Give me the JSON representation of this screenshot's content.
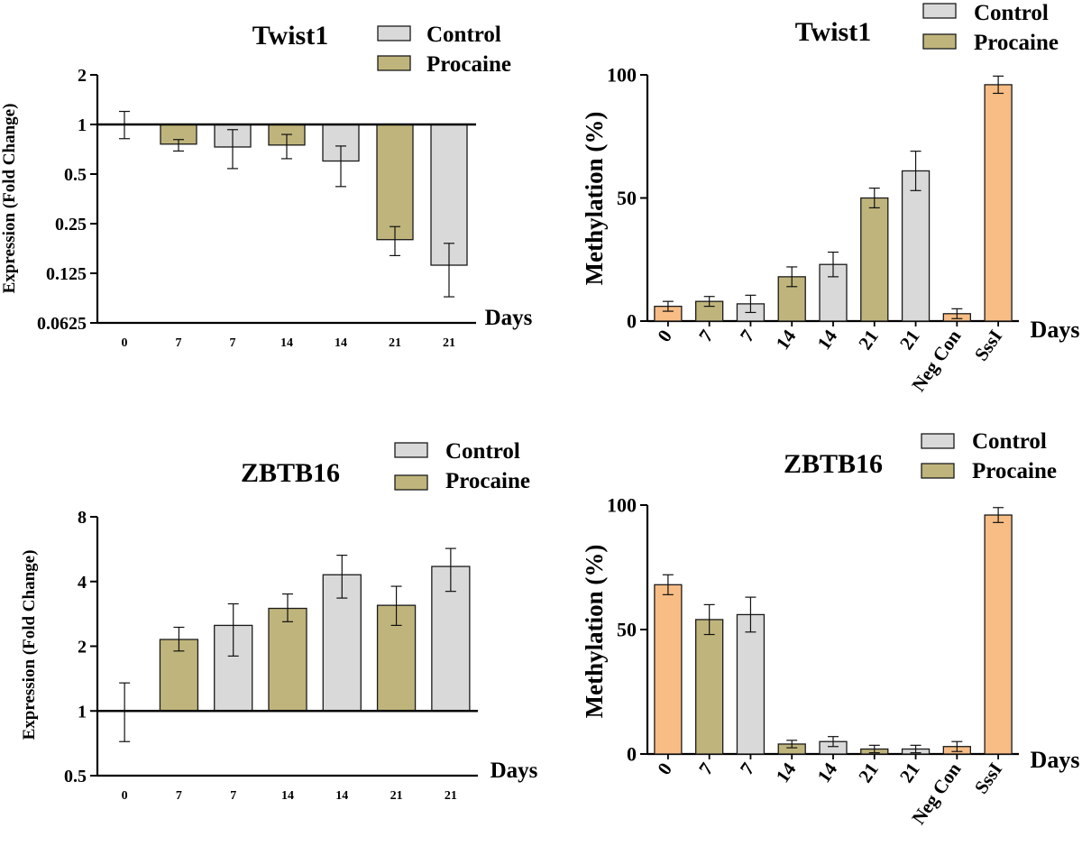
{
  "colors": {
    "control": "#d9d9d9",
    "procaine": "#bfb57c",
    "orange": "#f7bd85",
    "orange_dark": "#f2b37a",
    "stroke": "#1a1a1a"
  },
  "chart_data": [
    {
      "id": "twist1-expression",
      "type": "bar",
      "title": "Twist1",
      "xlabel": "Days",
      "ylabel": "Expression (Fold Change)",
      "yscale": "log2",
      "ylim": [
        0.0625,
        2
      ],
      "yticks": [
        "2",
        "1",
        "0.5",
        "0.25",
        "0.125",
        "0.0625"
      ],
      "ytick_values": [
        2,
        1,
        0.5,
        0.25,
        0.125,
        0.0625
      ],
      "baseline": 1,
      "categories": [
        "0",
        "7",
        "7",
        "14",
        "14",
        "21",
        "21"
      ],
      "values": [
        1.0,
        0.76,
        0.73,
        0.75,
        0.6,
        0.2,
        0.14
      ],
      "errors": [
        [
          0.82,
          1.2
        ],
        [
          0.69,
          0.81
        ],
        [
          0.54,
          0.93
        ],
        [
          0.62,
          0.87
        ],
        [
          0.42,
          0.74
        ],
        [
          0.16,
          0.24
        ],
        [
          0.09,
          0.19
        ]
      ],
      "group": [
        "none",
        "procaine",
        "control",
        "procaine",
        "control",
        "procaine",
        "control"
      ],
      "legend": [
        {
          "label": "Control",
          "key": "control"
        },
        {
          "label": "Procaine",
          "key": "procaine"
        }
      ],
      "legend_position": "top-right",
      "tick_style": "small"
    },
    {
      "id": "twist1-methylation",
      "type": "bar",
      "title": "Twist1",
      "xlabel": "Days",
      "ylabel": "Methylation (%)",
      "yscale": "linear",
      "ylim": [
        0,
        100
      ],
      "yticks": [
        "100",
        "50",
        "0"
      ],
      "ytick_values": [
        100,
        50,
        0
      ],
      "categories": [
        "0",
        "7",
        "7",
        "14",
        "14",
        "21",
        "21",
        "Neg Con",
        "SssI"
      ],
      "values": [
        6,
        8,
        7,
        18,
        23,
        50,
        61,
        3,
        96
      ],
      "errors": [
        2,
        2,
        3.5,
        4,
        5,
        4,
        8,
        2,
        3.5
      ],
      "group": [
        "orange",
        "procaine",
        "control",
        "procaine",
        "control",
        "procaine",
        "control",
        "orange",
        "orange"
      ],
      "legend": [
        {
          "label": "Control",
          "key": "control"
        },
        {
          "label": "Procaine",
          "key": "procaine"
        }
      ],
      "legend_position": "top-right",
      "tick_style": "rotated"
    },
    {
      "id": "zbtb16-expression",
      "type": "bar",
      "title": "ZBTB16",
      "xlabel": "Days",
      "ylabel": "Expression (Fold Change)",
      "yscale": "log2",
      "ylim": [
        0.5,
        8
      ],
      "yticks": [
        "8",
        "4",
        "2",
        "1",
        "0.5"
      ],
      "ytick_values": [
        8,
        4,
        2,
        1,
        0.5
      ],
      "baseline": 1,
      "categories": [
        "0",
        "7",
        "7",
        "14",
        "14",
        "21",
        "21"
      ],
      "values": [
        1.0,
        2.15,
        2.5,
        3.0,
        4.3,
        3.1,
        4.7
      ],
      "errors": [
        [
          0.72,
          1.35
        ],
        [
          1.9,
          2.45
        ],
        [
          1.8,
          3.15
        ],
        [
          2.6,
          3.5
        ],
        [
          3.35,
          5.3
        ],
        [
          2.5,
          3.8
        ],
        [
          3.6,
          5.7
        ]
      ],
      "group": [
        "none",
        "procaine",
        "control",
        "procaine",
        "control",
        "procaine",
        "control"
      ],
      "legend": [
        {
          "label": "Control",
          "key": "control"
        },
        {
          "label": "Procaine",
          "key": "procaine"
        }
      ],
      "legend_position": "top-right",
      "tick_style": "small"
    },
    {
      "id": "zbtb16-methylation",
      "type": "bar",
      "title": "ZBTB16",
      "xlabel": "Days",
      "ylabel": "Methylation (%)",
      "yscale": "linear",
      "ylim": [
        0,
        100
      ],
      "yticks": [
        "100",
        "50",
        "0"
      ],
      "ytick_values": [
        100,
        50,
        0
      ],
      "categories": [
        "0",
        "7",
        "7",
        "14",
        "14",
        "21",
        "21",
        "Neg Con",
        "SssI"
      ],
      "values": [
        68,
        54,
        56,
        4,
        5,
        2,
        2,
        3,
        96
      ],
      "errors": [
        4,
        6,
        7,
        1.5,
        2,
        1.5,
        1.5,
        2,
        3
      ],
      "group": [
        "orange",
        "procaine",
        "control",
        "procaine",
        "control",
        "procaine",
        "control",
        "orange",
        "orange"
      ],
      "legend": [
        {
          "label": "Control",
          "key": "control"
        },
        {
          "label": "Procaine",
          "key": "procaine"
        }
      ],
      "legend_position": "top-right",
      "tick_style": "rotated"
    }
  ]
}
